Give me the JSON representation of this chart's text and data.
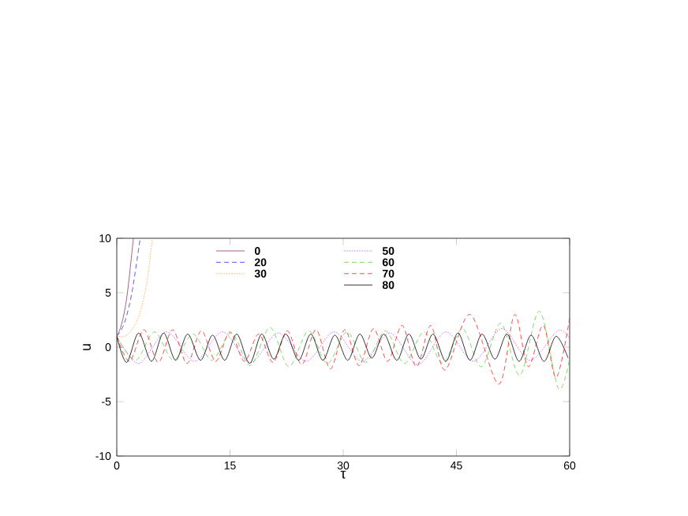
{
  "chart_data": {
    "type": "line",
    "xlabel": "τ",
    "ylabel": "u",
    "xlim": [
      0,
      60
    ],
    "ylim": [
      -10,
      10
    ],
    "xticks": [
      0,
      15,
      30,
      45,
      60
    ],
    "yticks": [
      -10,
      -5,
      0,
      5,
      10
    ],
    "grid": false,
    "legend": "top",
    "marker": "none",
    "series": [
      {
        "name": "0",
        "color": "#8b3a72",
        "line_style": "solid",
        "x": [
          0,
          0.5,
          1,
          1.5,
          2.2
        ],
        "values": [
          1,
          1.8,
          3.2,
          5.5,
          10
        ]
      },
      {
        "name": "20",
        "color": "#3030ff",
        "line_style": "dashed",
        "x": [
          0,
          1,
          2,
          3.1
        ],
        "values": [
          1,
          2.2,
          5,
          10
        ]
      },
      {
        "name": "30",
        "color": "#ffa040",
        "line_style": "dotted",
        "x": [
          0,
          1,
          2,
          3,
          4,
          4.7
        ],
        "values": [
          1,
          1.0,
          1.6,
          3,
          6,
          10
        ]
      },
      {
        "name": "50",
        "color": "#c050ff",
        "line_style": "dotted",
        "x": [
          0,
          2.9,
          6.6,
          10.3,
          14.0,
          17.7,
          21.4,
          25.1,
          28.8,
          32.5,
          36.2,
          39.9,
          43.6,
          47.3,
          51.0,
          54.7,
          58.4,
          60
        ],
        "values": [
          1,
          -1.5,
          1.4,
          -1.3,
          1.4,
          -1.4,
          1.3,
          -1.3,
          1.4,
          -1.3,
          1.3,
          -1.6,
          1.4,
          -1.3,
          1.7,
          -1.2,
          1.5,
          0.8
        ]
      },
      {
        "name": "60",
        "color": "#60d040",
        "line_style": "dashed",
        "x": [
          0,
          2.5,
          5,
          7.5,
          10.1,
          12.6,
          15.2,
          17.7,
          20.3,
          22.8,
          25.4,
          27.9,
          30.5,
          33,
          35.6,
          38.1,
          40.7,
          43.2,
          45.8,
          48.3,
          50.9,
          53.4,
          56,
          58.5,
          60
        ],
        "values": [
          1,
          -1.2,
          1.4,
          -1.2,
          1.2,
          -1.2,
          1.3,
          -1.7,
          1.8,
          -1.8,
          1.5,
          -1.5,
          1.4,
          -1.4,
          1.5,
          -1.5,
          1.4,
          -1.5,
          1.7,
          -1.8,
          2.2,
          -2.6,
          3.3,
          -3.8,
          -1.0
        ]
      },
      {
        "name": "70",
        "color": "#ff2020",
        "line_style": "dashed",
        "x": [
          0,
          1.7,
          3.6,
          5.5,
          7.4,
          9.3,
          11.2,
          13.1,
          15,
          16.9,
          18.8,
          20.7,
          22.6,
          24.5,
          26.4,
          28.3,
          30.2,
          32.1,
          34,
          35.9,
          37.8,
          39.7,
          41.6,
          43.5,
          46.8,
          50.6,
          52.7,
          54.5,
          56.5,
          58.2,
          60
        ],
        "values": [
          1,
          -1.3,
          1.6,
          -1.4,
          1.6,
          -1.5,
          1.5,
          -1.3,
          1.4,
          -1.3,
          1.2,
          -1.4,
          1.5,
          -1.6,
          1.6,
          -2.0,
          1.6,
          -1.7,
          1.7,
          -1.3,
          2.0,
          -1.8,
          2.0,
          -2.1,
          3.0,
          -3.4,
          3.0,
          -1.8,
          2.0,
          -2.8,
          2.7
        ]
      },
      {
        "name": "80",
        "color": "#000000",
        "line_style": "solid",
        "x": [
          0,
          1.3,
          2.9,
          4.6,
          6.2,
          7.8,
          9.4,
          11.1,
          12.7,
          14.3,
          15.9,
          17.6,
          19.2,
          20.8,
          22.4,
          24.1,
          25.7,
          27.3,
          28.9,
          30.6,
          32.2,
          33.8,
          35.4,
          37.1,
          38.7,
          40.3,
          41.9,
          43.6,
          45.2,
          46.8,
          48.4,
          50.1,
          51.7,
          53.3,
          54.9,
          56.6,
          58.2,
          59.8
        ],
        "values": [
          1,
          -1.4,
          1.3,
          -1.3,
          1.3,
          -1.2,
          1.2,
          -1.2,
          1.1,
          -1.2,
          1.2,
          -1.5,
          1.2,
          -1.1,
          1.2,
          -1.2,
          1.2,
          -1.2,
          1.1,
          -1.2,
          1.2,
          -1.0,
          1.2,
          -1.2,
          1.2,
          -1.1,
          1.2,
          -1.3,
          1.3,
          -1.2,
          1.2,
          -1.1,
          1.2,
          -1.3,
          1.1,
          -1.3,
          1.0,
          -1.0
        ]
      }
    ]
  }
}
